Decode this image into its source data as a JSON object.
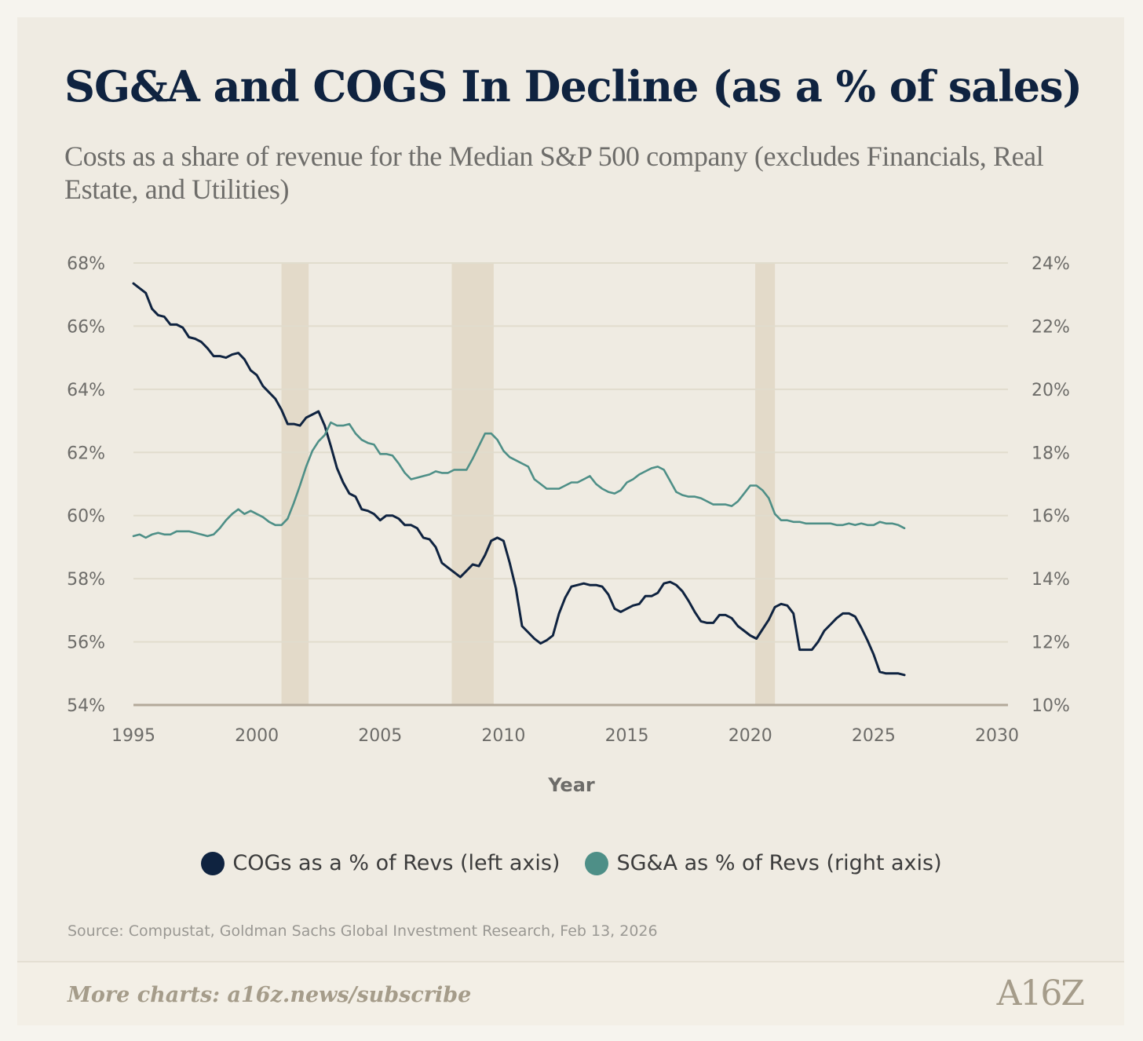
{
  "title": "SG&A and COGS In Decline (as a % of sales)",
  "subtitle": "Costs as a share of revenue for the Median S&P 500 company (excludes Financials, Real Estate, and Utilities)",
  "source": "Source: Compustat, Goldman Sachs Global Investment Research, Feb 13, 2026",
  "footer": {
    "link": "More charts: a16z.news/subscribe",
    "logo": "A16Z"
  },
  "colors": {
    "cogs": "#0f2340",
    "sga": "#4e8f87",
    "recession": "#e3dac9",
    "grid": "#e1dccd",
    "baseline": "#b3a99a"
  },
  "chart_data": {
    "type": "line",
    "xlabel": "Year",
    "xlim": [
      1995,
      2030
    ],
    "x_ticks": [
      "1995",
      "2000",
      "2005",
      "2010",
      "2015",
      "2020",
      "2025",
      "2030"
    ],
    "y_left": {
      "lim": [
        54,
        68
      ],
      "ticks": [
        "54%",
        "56%",
        "58%",
        "60%",
        "62%",
        "64%",
        "66%",
        "68%"
      ]
    },
    "y_right": {
      "lim": [
        10,
        24
      ],
      "ticks": [
        "10%",
        "12%",
        "14%",
        "16%",
        "18%",
        "20%",
        "22%",
        "24%"
      ]
    },
    "recessions": [
      [
        2001.0,
        2002.1
      ],
      [
        2007.9,
        2009.6
      ],
      [
        2020.2,
        2021.0
      ]
    ],
    "legend": "bottom-center",
    "series": [
      {
        "name": "COGs as a % of Revs (left axis)",
        "axis": "left",
        "x": [
          1995.0,
          1995.25,
          1995.5,
          1995.75,
          1996.0,
          1996.25,
          1996.5,
          1996.75,
          1997.0,
          1997.25,
          1997.5,
          1997.75,
          1998.0,
          1998.25,
          1998.5,
          1998.75,
          1999.0,
          1999.25,
          1999.5,
          1999.75,
          2000.0,
          2000.25,
          2000.5,
          2000.75,
          2001.0,
          2001.25,
          2001.5,
          2001.75,
          2002.0,
          2002.25,
          2002.5,
          2002.75,
          2003.0,
          2003.25,
          2003.5,
          2003.75,
          2004.0,
          2004.25,
          2004.5,
          2004.75,
          2005.0,
          2005.25,
          2005.5,
          2005.75,
          2006.0,
          2006.25,
          2006.5,
          2006.75,
          2007.0,
          2007.25,
          2007.5,
          2007.75,
          2008.0,
          2008.25,
          2008.5,
          2008.75,
          2009.0,
          2009.25,
          2009.5,
          2009.75,
          2010.0,
          2010.25,
          2010.5,
          2010.75,
          2011.0,
          2011.25,
          2011.5,
          2011.75,
          2012.0,
          2012.25,
          2012.5,
          2012.75,
          2013.0,
          2013.25,
          2013.5,
          2013.75,
          2014.0,
          2014.25,
          2014.5,
          2014.75,
          2015.0,
          2015.25,
          2015.5,
          2015.75,
          2016.0,
          2016.25,
          2016.5,
          2016.75,
          2017.0,
          2017.25,
          2017.5,
          2017.75,
          2018.0,
          2018.25,
          2018.5,
          2018.75,
          2019.0,
          2019.25,
          2019.5,
          2019.75,
          2020.0,
          2020.25,
          2020.5,
          2020.75,
          2021.0,
          2021.25,
          2021.5,
          2021.75,
          2022.0,
          2022.25,
          2022.5,
          2022.75,
          2023.0,
          2023.25,
          2023.5,
          2023.75,
          2024.0,
          2024.25,
          2024.5,
          2024.75,
          2025.0,
          2025.25,
          2025.5,
          2025.75,
          2026.0,
          2026.25
        ],
        "values": [
          67.35,
          67.2,
          67.05,
          66.55,
          66.35,
          66.3,
          66.05,
          66.05,
          65.95,
          65.65,
          65.6,
          65.5,
          65.3,
          65.05,
          65.05,
          65.0,
          65.1,
          65.15,
          64.95,
          64.6,
          64.45,
          64.1,
          63.9,
          63.7,
          63.35,
          62.9,
          62.9,
          62.85,
          63.1,
          63.2,
          63.3,
          62.85,
          62.2,
          61.5,
          61.05,
          60.7,
          60.6,
          60.2,
          60.15,
          60.05,
          59.85,
          60.0,
          60.0,
          59.9,
          59.7,
          59.7,
          59.6,
          59.3,
          59.25,
          59.0,
          58.5,
          58.35,
          58.2,
          58.05,
          58.25,
          58.45,
          58.4,
          58.75,
          59.2,
          59.3,
          59.2,
          58.5,
          57.7,
          56.5,
          56.3,
          56.1,
          55.95,
          56.05,
          56.2,
          56.9,
          57.4,
          57.75,
          57.8,
          57.85,
          57.8,
          57.8,
          57.75,
          57.5,
          57.05,
          56.95,
          57.05,
          57.15,
          57.2,
          57.45,
          57.45,
          57.55,
          57.85,
          57.9,
          57.8,
          57.6,
          57.3,
          56.95,
          56.65,
          56.6,
          56.6,
          56.85,
          56.85,
          56.75,
          56.5,
          56.35,
          56.2,
          56.1,
          56.4,
          56.7,
          57.1,
          57.2,
          57.15,
          56.9,
          55.75,
          55.75,
          55.75,
          56.0,
          56.35,
          56.55,
          56.75,
          56.9,
          56.9,
          56.8,
          56.45,
          56.05,
          55.6,
          55.05,
          55.0,
          55.0,
          55.0,
          54.95
        ]
      },
      {
        "name": "SG&A as % of Revs (right axis)",
        "axis": "right",
        "x": [
          1995.0,
          1995.25,
          1995.5,
          1995.75,
          1996.0,
          1996.25,
          1996.5,
          1996.75,
          1997.0,
          1997.25,
          1997.5,
          1997.75,
          1998.0,
          1998.25,
          1998.5,
          1998.75,
          1999.0,
          1999.25,
          1999.5,
          1999.75,
          2000.0,
          2000.25,
          2000.5,
          2000.75,
          2001.0,
          2001.25,
          2001.5,
          2001.75,
          2002.0,
          2002.25,
          2002.5,
          2002.75,
          2003.0,
          2003.25,
          2003.5,
          2003.75,
          2004.0,
          2004.25,
          2004.5,
          2004.75,
          2005.0,
          2005.25,
          2005.5,
          2005.75,
          2006.0,
          2006.25,
          2006.5,
          2006.75,
          2007.0,
          2007.25,
          2007.5,
          2007.75,
          2008.0,
          2008.25,
          2008.5,
          2008.75,
          2009.0,
          2009.25,
          2009.5,
          2009.75,
          2010.0,
          2010.25,
          2010.5,
          2010.75,
          2011.0,
          2011.25,
          2011.5,
          2011.75,
          2012.0,
          2012.25,
          2012.5,
          2012.75,
          2013.0,
          2013.25,
          2013.5,
          2013.75,
          2014.0,
          2014.25,
          2014.5,
          2014.75,
          2015.0,
          2015.25,
          2015.5,
          2015.75,
          2016.0,
          2016.25,
          2016.5,
          2016.75,
          2017.0,
          2017.25,
          2017.5,
          2017.75,
          2018.0,
          2018.25,
          2018.5,
          2018.75,
          2019.0,
          2019.25,
          2019.5,
          2019.75,
          2020.0,
          2020.25,
          2020.5,
          2020.75,
          2021.0,
          2021.25,
          2021.5,
          2021.75,
          2022.0,
          2022.25,
          2022.5,
          2022.75,
          2023.0,
          2023.25,
          2023.5,
          2023.75,
          2024.0,
          2024.25,
          2024.5,
          2024.75,
          2025.0,
          2025.25,
          2025.5,
          2025.75,
          2026.0,
          2026.25
        ],
        "values": [
          15.35,
          15.4,
          15.3,
          15.4,
          15.45,
          15.4,
          15.4,
          15.5,
          15.5,
          15.5,
          15.45,
          15.4,
          15.35,
          15.4,
          15.6,
          15.85,
          16.05,
          16.2,
          16.05,
          16.15,
          16.05,
          15.95,
          15.8,
          15.7,
          15.7,
          15.9,
          16.4,
          16.95,
          17.55,
          18.05,
          18.35,
          18.55,
          18.95,
          18.85,
          18.85,
          18.9,
          18.6,
          18.4,
          18.3,
          18.25,
          17.95,
          17.95,
          17.9,
          17.65,
          17.35,
          17.15,
          17.2,
          17.25,
          17.3,
          17.4,
          17.35,
          17.35,
          17.45,
          17.45,
          17.45,
          17.8,
          18.2,
          18.6,
          18.6,
          18.4,
          18.05,
          17.85,
          17.75,
          17.65,
          17.55,
          17.15,
          17.0,
          16.85,
          16.85,
          16.85,
          16.95,
          17.05,
          17.05,
          17.15,
          17.25,
          17.0,
          16.85,
          16.75,
          16.7,
          16.8,
          17.05,
          17.15,
          17.3,
          17.4,
          17.5,
          17.55,
          17.45,
          17.1,
          16.75,
          16.65,
          16.6,
          16.6,
          16.55,
          16.45,
          16.35,
          16.35,
          16.35,
          16.3,
          16.45,
          16.7,
          16.95,
          16.95,
          16.8,
          16.55,
          16.05,
          15.85,
          15.85,
          15.8,
          15.8,
          15.75,
          15.75,
          15.75,
          15.75,
          15.75,
          15.7,
          15.7,
          15.75,
          15.7,
          15.75,
          15.7,
          15.7,
          15.8,
          15.75,
          15.75,
          15.7,
          15.6
        ]
      }
    ]
  }
}
